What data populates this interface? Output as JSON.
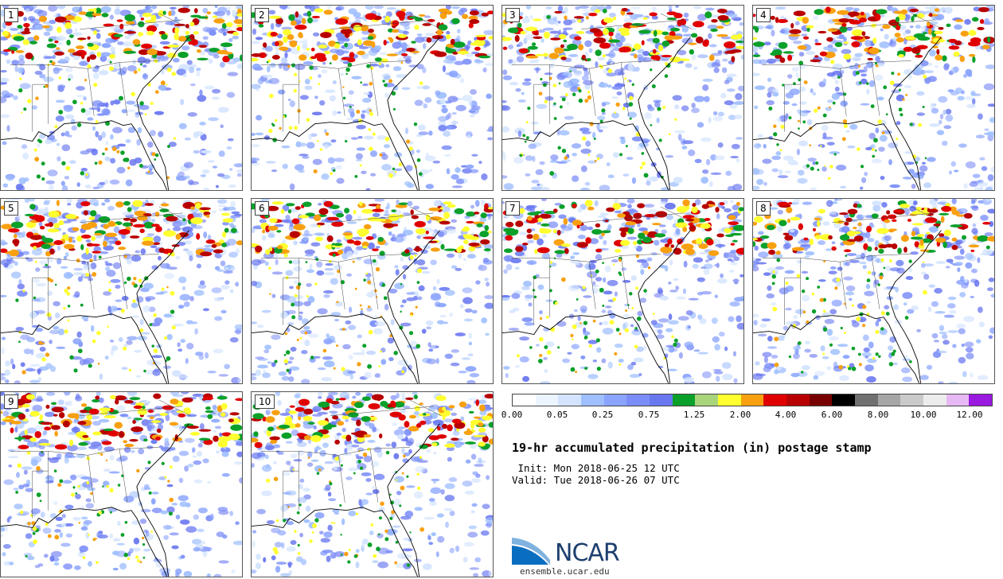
{
  "panels": [
    "1",
    "2",
    "3",
    "4",
    "5",
    "6",
    "7",
    "8",
    "9",
    "10"
  ],
  "colorbar": {
    "colors": [
      "#ffffff",
      "#ecf4ff",
      "#d4e4ff",
      "#9fbfff",
      "#8aa4ff",
      "#7b8df8",
      "#6a78f0",
      "#0aa02a",
      "#a8d47a",
      "#ffff30",
      "#f8a010",
      "#e00000",
      "#b80000",
      "#780000",
      "#000000",
      "#707070",
      "#a6a6a6",
      "#cacaca",
      "#ececec",
      "#e6b8f4",
      "#9a1ae0"
    ],
    "tick_labels": [
      "0.00",
      "0.05",
      "0.25",
      "0.75",
      "1.25",
      "2.00",
      "4.00",
      "6.00",
      "8.00",
      "10.00",
      "12.00"
    ]
  },
  "title": "19-hr accumulated precipitation (in) postage stamp",
  "init": " Init: Mon 2018-06-25 12 UTC",
  "valid": "Valid: Tue 2018-06-26 07 UTC",
  "logo": {
    "text": "NCAR",
    "url": "ensemble.ucar.edu"
  }
}
